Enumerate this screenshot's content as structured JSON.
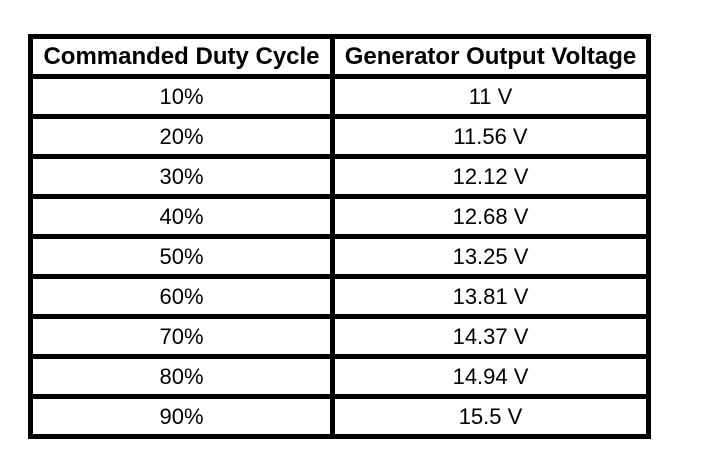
{
  "table": {
    "headers": {
      "duty_cycle": "Commanded Duty Cycle",
      "voltage": "Generator Output Voltage"
    },
    "rows": [
      {
        "duty_cycle": "10%",
        "voltage": "11 V"
      },
      {
        "duty_cycle": "20%",
        "voltage": "11.56 V"
      },
      {
        "duty_cycle": "30%",
        "voltage": "12.12 V"
      },
      {
        "duty_cycle": "40%",
        "voltage": "12.68 V"
      },
      {
        "duty_cycle": "50%",
        "voltage": "13.25 V"
      },
      {
        "duty_cycle": "60%",
        "voltage": "13.81 V"
      },
      {
        "duty_cycle": "70%",
        "voltage": "14.37 V"
      },
      {
        "duty_cycle": "80%",
        "voltage": "14.94 V"
      },
      {
        "duty_cycle": "90%",
        "voltage": "15.5 V"
      }
    ],
    "colors": {
      "border": "#000000",
      "text": "#000000",
      "background": "#ffffff"
    }
  },
  "chart_data": {
    "type": "table",
    "columns": [
      "Commanded Duty Cycle",
      "Generator Output Voltage"
    ],
    "categories": [
      "10%",
      "20%",
      "30%",
      "40%",
      "50%",
      "60%",
      "70%",
      "80%",
      "90%"
    ],
    "series": [
      {
        "name": "Generator Output Voltage (V)",
        "values": [
          11,
          11.56,
          12.12,
          12.68,
          13.25,
          13.81,
          14.37,
          14.94,
          15.5
        ]
      }
    ],
    "layout": {
      "grid": "full-borders",
      "legend": "none"
    }
  }
}
